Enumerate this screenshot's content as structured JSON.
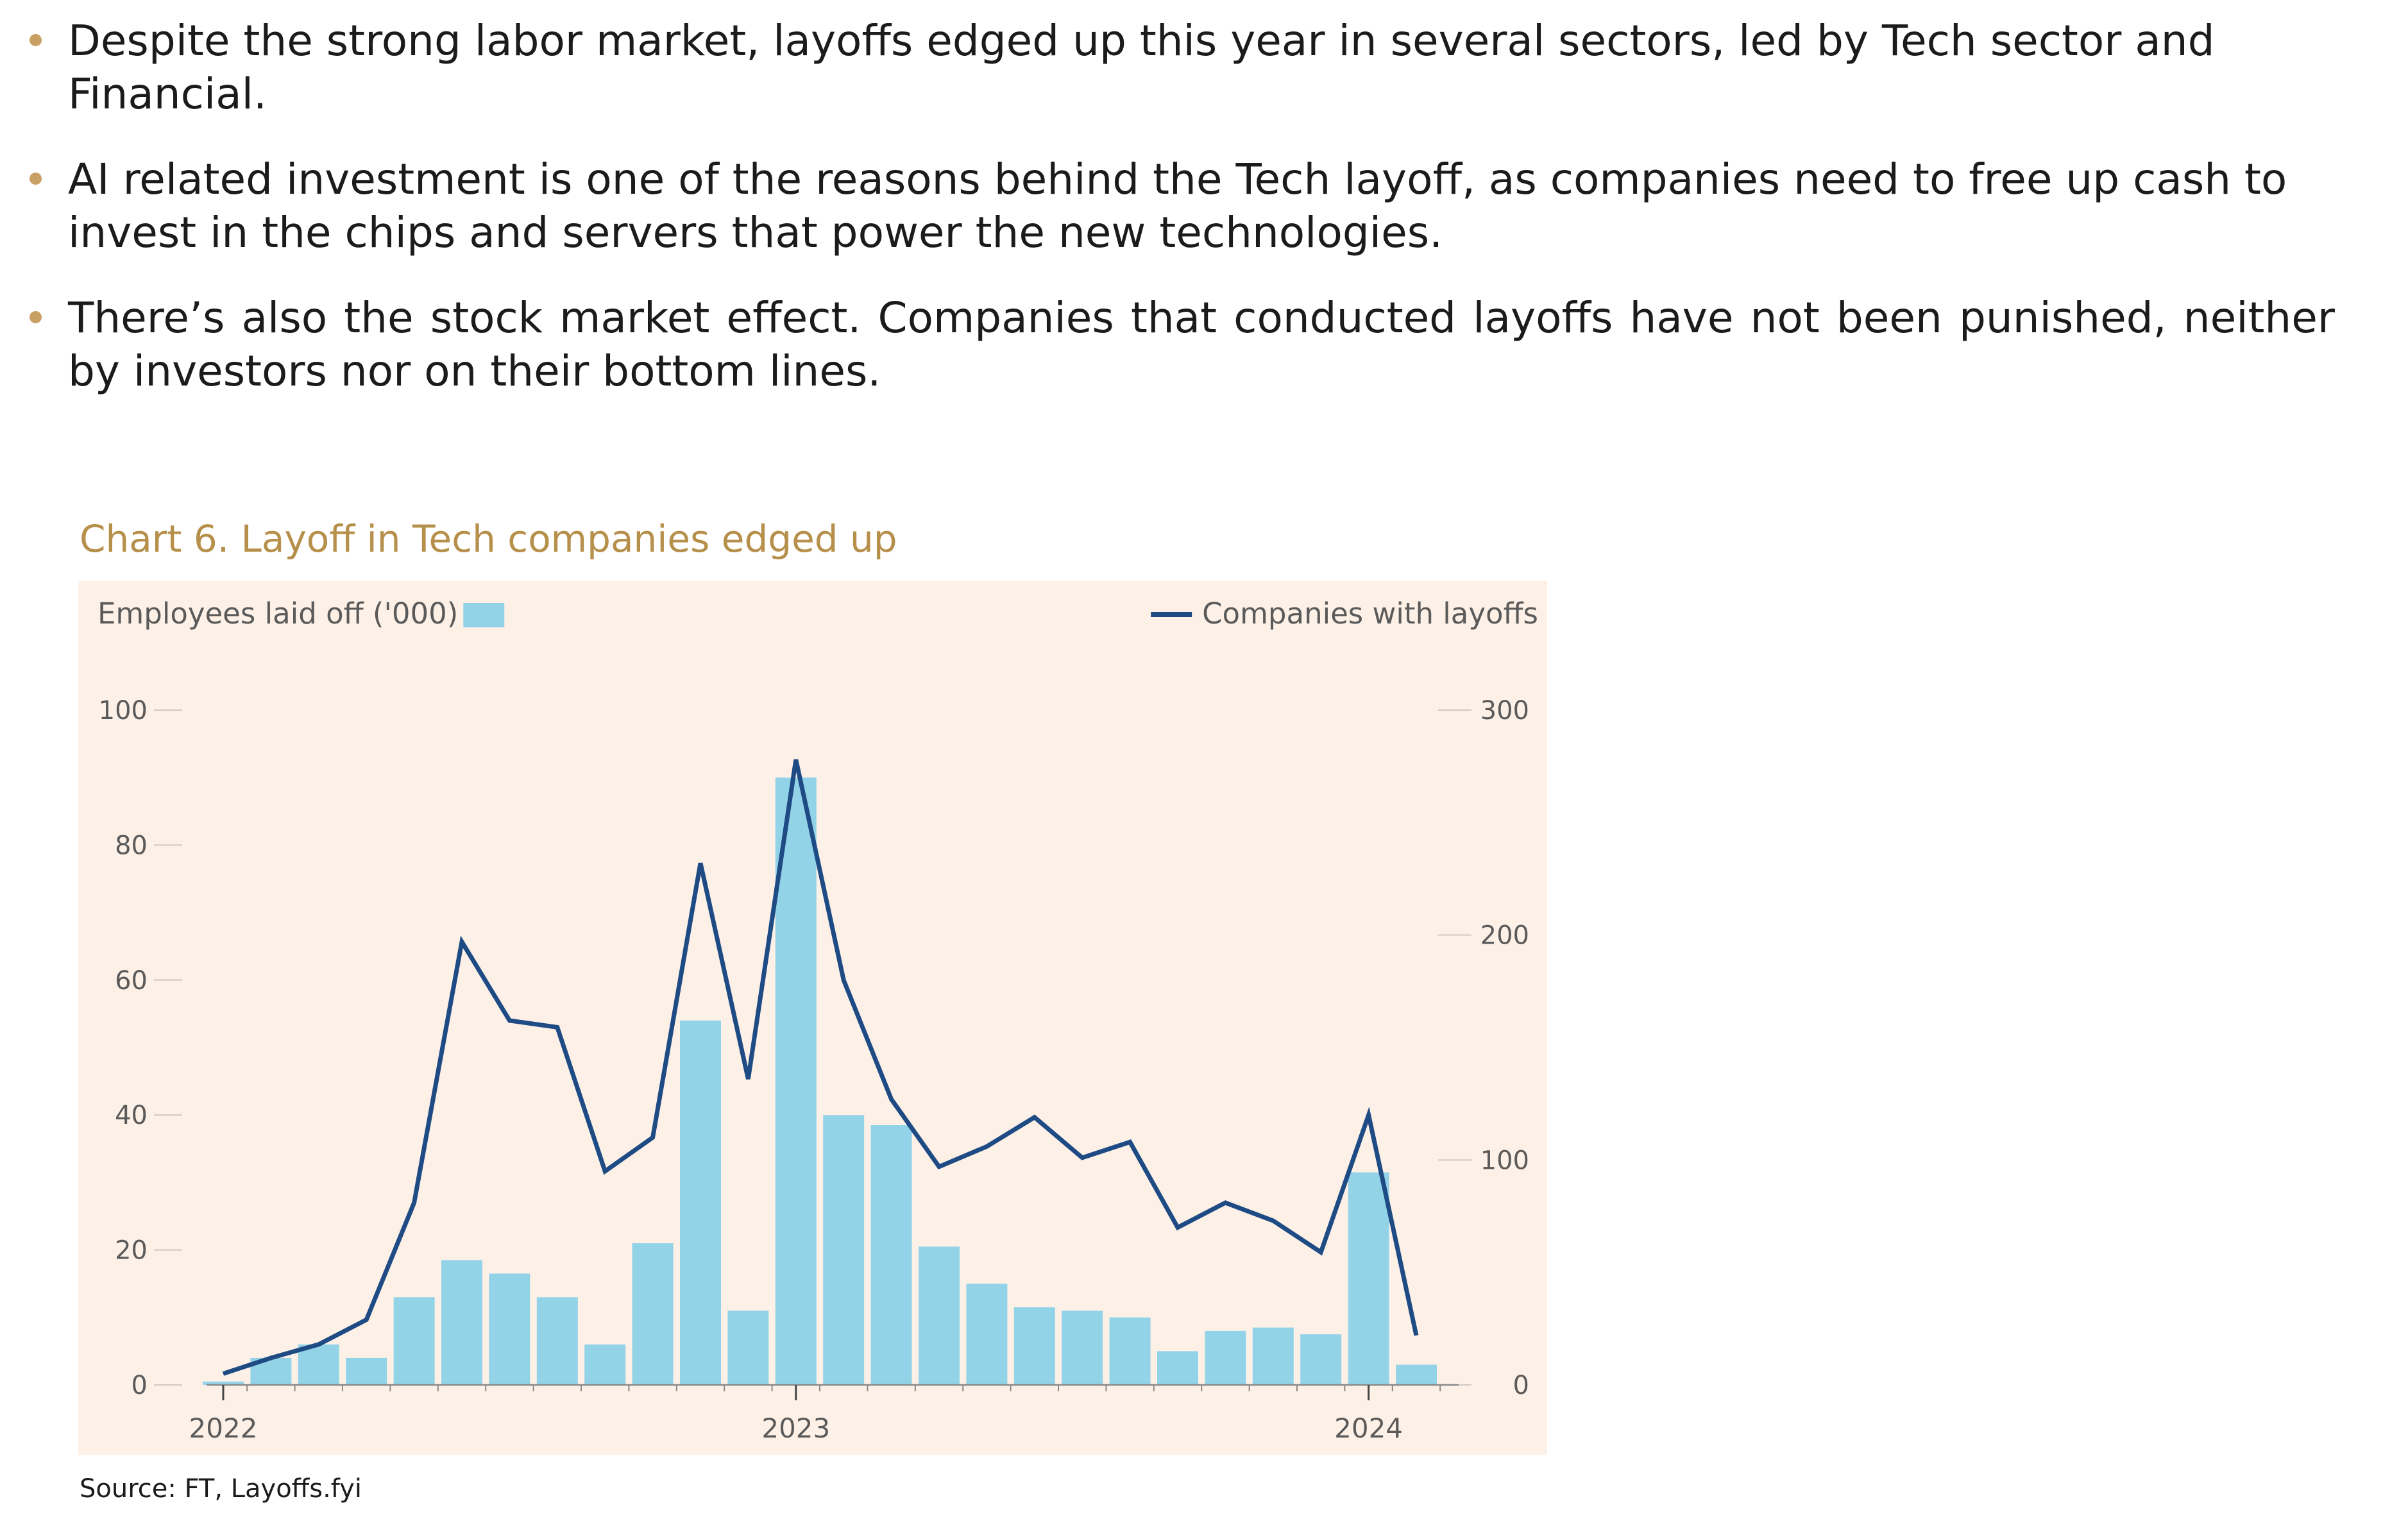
{
  "bullets": [
    "Despite the strong labor market, layoffs edged up this year in several sectors, led by Tech sector and Financial.",
    "AI related investment is one of the reasons behind the Tech layoff, as companies need to free up cash to invest in the chips and servers that power the new technologies.",
    "There’s also the stock market effect. Companies that conducted layoffs have not been punished, neither by investors nor on their bottom lines."
  ],
  "colors": {
    "bullet_dot": "#c9a063",
    "title": "#b68f4a",
    "panel_bg": "#fdf1e7",
    "bar": "#93d3e8",
    "line": "#1f4b85",
    "axis_text": "#5a5a5a",
    "grid": "#cfc8c1"
  },
  "chart_title": "Chart 6. Layoff in Tech companies edged up",
  "source": "Source: FT, Layoffs.fyi",
  "chart_data": {
    "type": "bar+line",
    "title": "Chart 6. Layoff in Tech companies edged up",
    "left_axis": {
      "label": "Employees laid off ('000)",
      "range": [
        0,
        100
      ],
      "ticks": [
        "0",
        "20",
        "40",
        "60",
        "80",
        "100"
      ]
    },
    "right_axis": {
      "label": "Companies with layoffs",
      "range": [
        0,
        300
      ],
      "ticks": [
        "0",
        "100",
        "200",
        "300"
      ]
    },
    "x_ticks": [
      "2022",
      "2023",
      "2024"
    ],
    "x_tick_positions": [
      0,
      12,
      24
    ],
    "series": [
      {
        "name": "Employees laid off ('000)",
        "type": "bar",
        "axis": "left",
        "values": [
          0.5,
          4,
          6,
          4,
          13,
          18.5,
          16.5,
          13,
          6,
          21,
          54,
          11,
          90,
          40,
          38.5,
          20.5,
          15,
          11.5,
          11,
          10,
          5,
          8,
          8.5,
          7.5,
          31.5,
          3
        ]
      },
      {
        "name": "Companies with layoffs",
        "type": "line",
        "axis": "right",
        "values": [
          5,
          12,
          18,
          29,
          81,
          197,
          162,
          159,
          95,
          110,
          232,
          136,
          278,
          180,
          127,
          97,
          106,
          119,
          101,
          108,
          70,
          81,
          73,
          59,
          120,
          22
        ]
      }
    ]
  }
}
